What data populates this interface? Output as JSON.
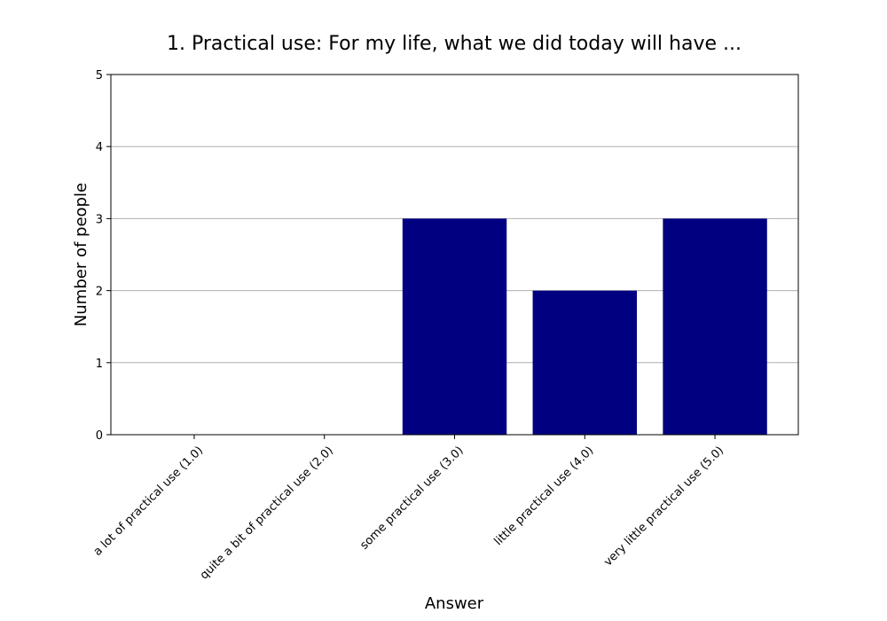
{
  "chart_data": {
    "type": "bar",
    "title": "1. Practical use: For my life, what we did today will have ...",
    "xlabel": "Answer",
    "ylabel": "Number of people",
    "categories": [
      "a lot of practical use (1.0)",
      "quite a bit of practical use (2.0)",
      "some practical use (3.0)",
      "little practical use (4.0)",
      "very little practical use (5.0)"
    ],
    "values": [
      0,
      0,
      3,
      2,
      3
    ],
    "ylim": [
      0,
      5
    ],
    "yticks": [
      0,
      1,
      2,
      3,
      4,
      5
    ],
    "grid": true,
    "bar_color": "#000080"
  }
}
